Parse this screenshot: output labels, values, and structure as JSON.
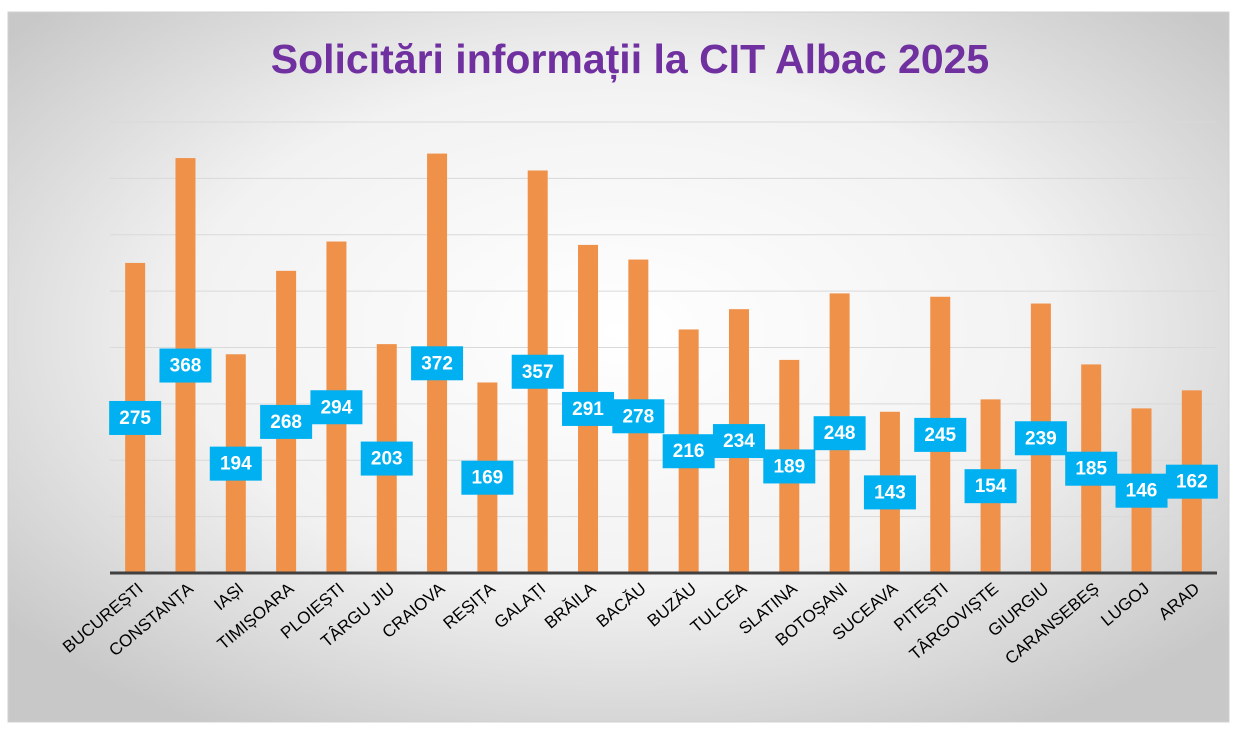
{
  "chart_data": {
    "type": "bar",
    "title": "Solicitări informații la CIT Albac 2025",
    "categories": [
      "BUCUREȘTI",
      "CONSTANȚA",
      "IAȘI",
      "TIMIȘOARA",
      "PLOIEȘTI",
      "TÂRGU JIU",
      "CRAIOVA",
      "REȘIȚA",
      "GALAȚI",
      "BRĂILA",
      "BACĂU",
      "BUZĂU",
      "TULCEA",
      "SLATINA",
      "BOTOȘANI",
      "SUCEAVA",
      "PITEȘTI",
      "TÂRGOVIȘTE",
      "GIURGIU",
      "CARANSEBEȘ",
      "LUGOJ",
      "ARAD"
    ],
    "values": [
      275,
      368,
      194,
      268,
      294,
      203,
      372,
      169,
      357,
      291,
      278,
      216,
      234,
      189,
      248,
      143,
      245,
      154,
      239,
      185,
      146,
      162
    ],
    "color": "#f0914a",
    "label_color": "#00b0f0",
    "ylim": [
      0,
      400
    ],
    "yticks": [
      0,
      50,
      100,
      150,
      200,
      250,
      300,
      350,
      400
    ],
    "grid": true
  }
}
